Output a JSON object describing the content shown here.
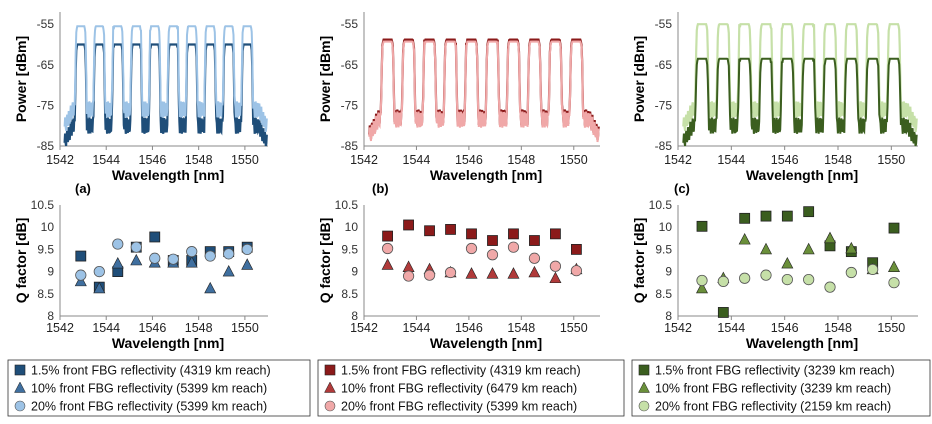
{
  "panels": [
    {
      "letter": "(a)",
      "colors": {
        "c15": "#1f4e79",
        "c10": "#3f6f9f",
        "c20": "#9dc3e6"
      },
      "legend": [
        {
          "text": "1.5% front FBG reflectivity  (4319 km reach)",
          "marker": "square"
        },
        {
          "text": "10% front FBG reflectivity  (5399 km reach)",
          "marker": "triangle"
        },
        {
          "text": "20% front FBG reflectivity  (5399 km reach)",
          "marker": "circle"
        }
      ]
    },
    {
      "letter": "(b)",
      "colors": {
        "c15": "#8b1a1a",
        "c10": "#b03a3a",
        "c20": "#f0a8a8"
      },
      "legend": [
        {
          "text": "1.5% front FBG reflectivity (4319 km reach)",
          "marker": "square"
        },
        {
          "text": "10% front FBG reflectivity (6479 km reach)",
          "marker": "triangle"
        },
        {
          "text": "20% front FBG reflectivity (5399 km reach)",
          "marker": "circle"
        }
      ]
    },
    {
      "letter": "(c)",
      "colors": {
        "c15": "#3b5e1f",
        "c10": "#6a8f3a",
        "c20": "#c6e0a8"
      },
      "legend": [
        {
          "text": "1.5% front FBG reflectivity (3239 km reach)",
          "marker": "square"
        },
        {
          "text": "10% front FBG reflectivity (3239 km reach)",
          "marker": "triangle"
        },
        {
          "text": "20% front FBG reflectivity (2159 km reach)",
          "marker": "circle"
        }
      ]
    }
  ],
  "chart_data": [
    {
      "type": "line",
      "panel": "a",
      "xlabel": "Wavelength [nm]",
      "ylabel": "Power [dBm]",
      "xlim": [
        1542,
        1551
      ],
      "ylim": [
        -85,
        -52
      ],
      "xticks": [
        "1542",
        "1544",
        "1546",
        "1548",
        "1550"
      ],
      "yticks": [
        "-55",
        "-65",
        "-75",
        "-85"
      ],
      "channels_nm": [
        1542.9,
        1543.7,
        1544.5,
        1545.3,
        1546.1,
        1546.9,
        1547.7,
        1548.5,
        1549.3,
        1550.1
      ],
      "series": [
        {
          "color": "#1f4e79",
          "peak_dBm": -60,
          "floor_dBm": -80
        },
        {
          "color": "#9dc3e6",
          "peak_dBm": -55.5,
          "floor_dBm": -76
        }
      ]
    },
    {
      "type": "scatter",
      "panel": "a",
      "xlabel": "Wavelength [nm]",
      "ylabel": "Q factor [dB]",
      "xlim": [
        1542,
        1551
      ],
      "ylim": [
        8,
        10.5
      ],
      "xticks": [
        "1542",
        "1544",
        "1546",
        "1548",
        "1550"
      ],
      "yticks": [
        "8",
        "8.5",
        "9",
        "9.5",
        "10",
        "10.5"
      ],
      "x": [
        1542.9,
        1543.7,
        1544.5,
        1545.3,
        1546.1,
        1546.9,
        1547.7,
        1548.5,
        1549.3,
        1550.1
      ],
      "series": [
        {
          "marker": "square",
          "values": [
            9.35,
            8.65,
            9.0,
            9.55,
            9.78,
            9.25,
            9.25,
            9.45,
            9.45,
            9.55
          ]
        },
        {
          "marker": "triangle",
          "values": [
            8.78,
            8.62,
            9.18,
            9.25,
            9.2,
            9.2,
            9.2,
            8.62,
            9.0,
            9.15
          ]
        },
        {
          "marker": "circle",
          "values": [
            8.92,
            9.0,
            9.62,
            9.55,
            9.3,
            9.28,
            9.45,
            9.35,
            9.4,
            9.5
          ]
        }
      ]
    },
    {
      "type": "line",
      "panel": "b",
      "xlabel": "Wavelength [nm]",
      "ylabel": "Power [dBm]",
      "xlim": [
        1542,
        1551
      ],
      "ylim": [
        -85,
        -52
      ],
      "xticks": [
        "1542",
        "1544",
        "1546",
        "1548",
        "1550"
      ],
      "yticks": [
        "-55",
        "-65",
        "-75",
        "-85"
      ],
      "channels_nm": [
        1542.9,
        1543.7,
        1544.5,
        1545.3,
        1546.1,
        1546.9,
        1547.7,
        1548.5,
        1549.3,
        1550.1
      ],
      "series": [
        {
          "color": "#8b1a1a",
          "peak_dBm": -58.8,
          "floor_dBm": -78
        },
        {
          "color": "#f0a8a8",
          "peak_dBm": -59.3,
          "floor_dBm": -78.5
        }
      ]
    },
    {
      "type": "scatter",
      "panel": "b",
      "xlabel": "Wavelength [nm]",
      "ylabel": "Q factor [dB]",
      "xlim": [
        1542,
        1551
      ],
      "ylim": [
        8,
        10.5
      ],
      "xticks": [
        "1542",
        "1544",
        "1546",
        "1548",
        "1550"
      ],
      "yticks": [
        "8",
        "8.5",
        "9",
        "9.5",
        "10",
        "10.5"
      ],
      "x": [
        1542.9,
        1543.7,
        1544.5,
        1545.3,
        1546.1,
        1546.9,
        1547.7,
        1548.5,
        1549.3,
        1550.1
      ],
      "series": [
        {
          "marker": "square",
          "values": [
            9.8,
            10.05,
            9.92,
            9.95,
            9.85,
            9.7,
            9.85,
            9.7,
            9.85,
            9.5
          ]
        },
        {
          "marker": "triangle",
          "values": [
            9.15,
            9.1,
            9.05,
            8.98,
            8.95,
            8.95,
            8.95,
            8.98,
            8.85,
            9.05
          ]
        },
        {
          "marker": "circle",
          "values": [
            9.52,
            8.9,
            8.92,
            8.98,
            9.52,
            9.38,
            9.55,
            9.3,
            9.12,
            9.02
          ]
        }
      ]
    },
    {
      "type": "line",
      "panel": "c",
      "xlabel": "Wavelength [nm]",
      "ylabel": "Power [dBm]",
      "xlim": [
        1542,
        1551
      ],
      "ylim": [
        -85,
        -52
      ],
      "xticks": [
        "1542",
        "1544",
        "1546",
        "1548",
        "1550"
      ],
      "yticks": [
        "-55",
        "-65",
        "-75",
        "-85"
      ],
      "channels_nm": [
        1542.9,
        1543.7,
        1544.5,
        1545.3,
        1546.1,
        1546.9,
        1547.7,
        1548.5,
        1549.3,
        1550.1
      ],
      "series": [
        {
          "color": "#c6e0a8",
          "peak_dBm": -55,
          "floor_dBm": -76
        },
        {
          "color": "#3b5e1f",
          "peak_dBm": -63.5,
          "floor_dBm": -80
        }
      ]
    },
    {
      "type": "scatter",
      "panel": "c",
      "xlabel": "Wavelength [nm]",
      "ylabel": "Q factor [dB]",
      "xlim": [
        1542,
        1551
      ],
      "ylim": [
        8,
        10.5
      ],
      "xticks": [
        "1542",
        "1544",
        "1546",
        "1548",
        "1550"
      ],
      "yticks": [
        "8",
        "8.5",
        "9",
        "9.5",
        "10",
        "10.5"
      ],
      "x": [
        1542.9,
        1543.7,
        1544.5,
        1545.3,
        1546.1,
        1546.9,
        1547.7,
        1548.5,
        1549.3,
        1550.1
      ],
      "series": [
        {
          "marker": "square",
          "values": [
            10.02,
            8.08,
            10.2,
            10.25,
            10.25,
            10.35,
            9.58,
            9.45,
            9.2,
            9.98
          ]
        },
        {
          "marker": "triangle",
          "values": [
            8.62,
            8.85,
            9.72,
            9.5,
            9.18,
            9.5,
            9.75,
            9.52,
            9.05,
            9.1
          ]
        },
        {
          "marker": "circle",
          "values": [
            8.8,
            8.78,
            8.85,
            8.92,
            8.82,
            8.82,
            8.65,
            8.98,
            9.05,
            8.75
          ]
        }
      ]
    }
  ]
}
